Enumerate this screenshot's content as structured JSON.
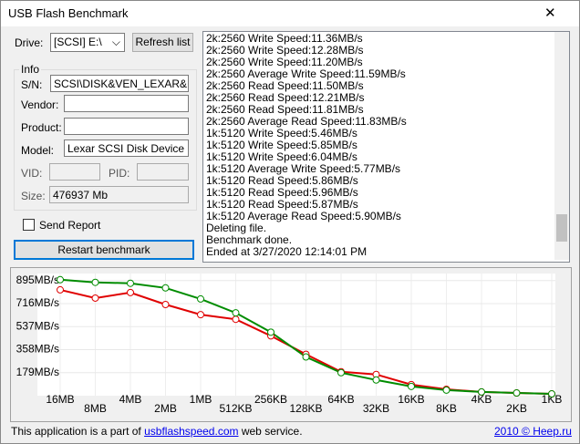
{
  "window": {
    "title": "USB Flash Benchmark",
    "close": "✕"
  },
  "drive": {
    "label": "Drive:",
    "value": "[SCSI] E:\\",
    "refresh": "Refresh list"
  },
  "info": {
    "title": "Info",
    "sn": {
      "label": "S/N:",
      "value": "SCSI\\DISK&VEN_LEXAR&PRO"
    },
    "vendor": {
      "label": "Vendor:"
    },
    "product": {
      "label": "Product:"
    },
    "model": {
      "label": "Model:",
      "value": "Lexar  SCSI Disk Device"
    },
    "vid": {
      "label": "VID:"
    },
    "pid": {
      "label": "PID:"
    },
    "size": {
      "label": "Size:",
      "value": "476937 Mb"
    }
  },
  "send_report": "Send Report",
  "restart": "Restart benchmark",
  "log": [
    "2k:2560 Write Speed:11.36MB/s",
    "2k:2560 Write Speed:12.28MB/s",
    "2k:2560 Write Speed:11.20MB/s",
    "2k:2560 Average Write Speed:11.59MB/s",
    "2k:2560 Read Speed:11.50MB/s",
    "2k:2560 Read Speed:12.21MB/s",
    "2k:2560 Read Speed:11.81MB/s",
    "2k:2560 Average Read Speed:11.83MB/s",
    "1k:5120 Write Speed:5.46MB/s",
    "1k:5120 Write Speed:5.85MB/s",
    "1k:5120 Write Speed:6.04MB/s",
    "1k:5120 Average Write Speed:5.77MB/s",
    "1k:5120 Read Speed:5.86MB/s",
    "1k:5120 Read Speed:5.96MB/s",
    "1k:5120 Read Speed:5.87MB/s",
    "1k:5120 Average Read Speed:5.90MB/s",
    "Deleting file.",
    "Benchmark done.",
    "Ended at 3/27/2020 12:14:01 PM"
  ],
  "chart_data": {
    "type": "line",
    "categories": [
      "16MB",
      "8MB",
      "4MB",
      "2MB",
      "1MB",
      "512KB",
      "256KB",
      "128KB",
      "64KB",
      "32KB",
      "16KB",
      "8KB",
      "4KB",
      "2KB",
      "1KB"
    ],
    "series": [
      {
        "color": "#e00000",
        "values": [
          823,
          759,
          802,
          709,
          630,
          594,
          465,
          322,
          186,
          165,
          86,
          50,
          29,
          21,
          14
        ]
      },
      {
        "color": "#008c00",
        "values": [
          902,
          881,
          874,
          838,
          752,
          644,
          494,
          301,
          179,
          122,
          72,
          43,
          29,
          21,
          14
        ]
      }
    ],
    "ylim": [
      0,
      950
    ],
    "yticks": [
      {
        "value": 179,
        "label": "179MB/s"
      },
      {
        "value": 358,
        "label": "358MB/s"
      },
      {
        "value": 537,
        "label": "537MB/s"
      },
      {
        "value": 716,
        "label": "716MB/s"
      },
      {
        "value": 895,
        "label": "895MB/s"
      }
    ],
    "grid": true
  },
  "footer": {
    "text_before": "This application is a part of",
    "link": "usbflashspeed.com",
    "text_after": "web service.",
    "credit": "2010 © Heep.ru"
  }
}
